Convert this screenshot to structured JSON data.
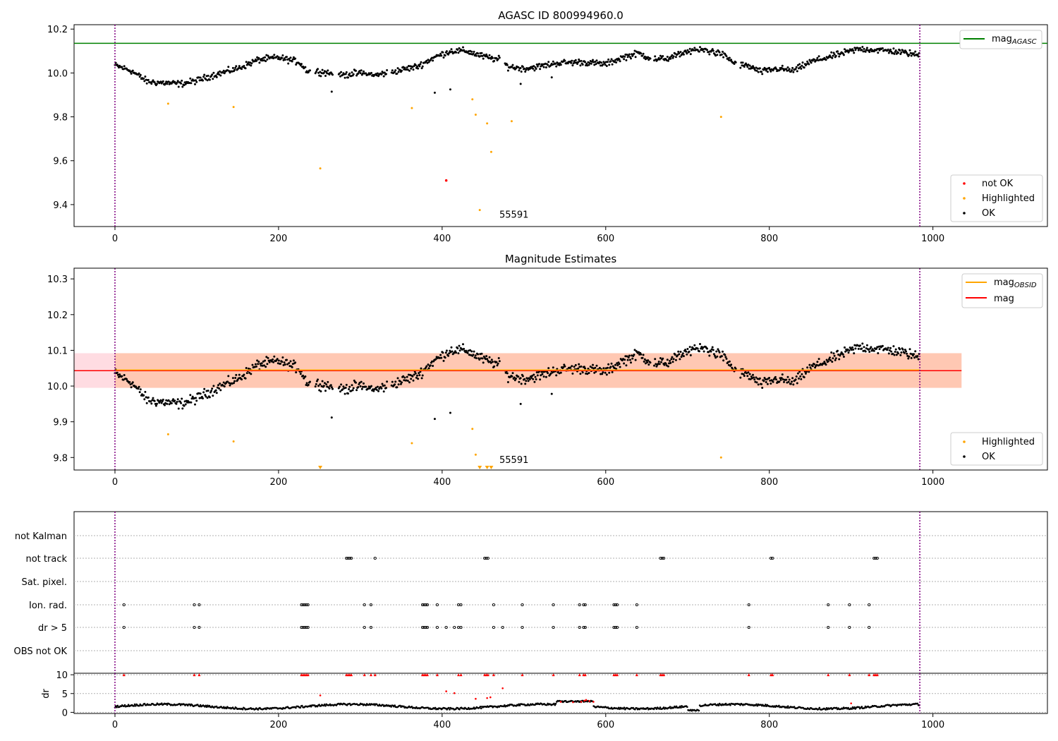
{
  "chart_data": [
    {
      "type": "scatter",
      "title": "AGASC ID 800994960.0",
      "xlim": [
        -50,
        1140
      ],
      "ylim": [
        9.3,
        10.22
      ],
      "xticks": [
        0,
        200,
        400,
        600,
        800,
        1000
      ],
      "yticks": [
        9.4,
        9.6,
        9.8,
        10.0,
        10.2
      ],
      "ytick_labels": [
        "9.4",
        "9.6",
        "9.8",
        "10.0",
        "10.2"
      ],
      "mag_agasc": 10.135,
      "vlines": [
        0,
        984
      ],
      "annotation": {
        "text": "55591",
        "x": 470,
        "y": 9.34
      },
      "legend_top": {
        "label_main": "mag",
        "label_sub": "AGASC",
        "color": "#008000"
      },
      "legend_bottom": [
        {
          "label": "not OK",
          "color": "#ff0000"
        },
        {
          "label": "Highlighted",
          "color": "#ffa500"
        },
        {
          "label": "OK",
          "color": "#000000"
        }
      ],
      "not_ok": [
        [
          405,
          9.51
        ]
      ],
      "highlighted": [
        [
          65,
          9.86
        ],
        [
          145,
          9.845
        ],
        [
          251,
          9.565
        ],
        [
          363,
          9.84
        ],
        [
          437,
          9.88
        ],
        [
          441,
          9.81
        ],
        [
          446,
          9.375
        ],
        [
          455,
          9.77
        ],
        [
          460,
          9.64
        ],
        [
          485,
          9.78
        ],
        [
          741,
          9.8
        ]
      ],
      "ok_outliers": [
        [
          265,
          9.915
        ],
        [
          391,
          9.91
        ],
        [
          410,
          9.925
        ],
        [
          496,
          9.95
        ],
        [
          534,
          9.98
        ]
      ]
    },
    {
      "type": "scatter",
      "title": "Magnitude Estimates",
      "xlim": [
        -50,
        1140
      ],
      "ylim": [
        9.765,
        10.33
      ],
      "xticks": [
        0,
        200,
        400,
        600,
        800,
        1000
      ],
      "yticks": [
        9.8,
        9.9,
        10.0,
        10.1,
        10.2,
        10.3
      ],
      "ytick_labels": [
        "9.8",
        "9.9",
        "10.0",
        "10.1",
        "10.2",
        "10.3"
      ],
      "mag": 10.043,
      "mag_obsid": 10.045,
      "band_pink": [
        9.995,
        10.092
      ],
      "band_orange_to": 1035,
      "vlines": [
        0,
        984
      ],
      "annotation": {
        "text": "55591",
        "x": 470,
        "y": 9.785
      },
      "legend_top": [
        {
          "label_main": "mag",
          "label_sub": "OBSID",
          "color": "#ffa500"
        },
        {
          "label_main": "mag",
          "label_sub": "",
          "color": "#ff0000"
        }
      ],
      "legend_bottom": [
        {
          "label": "Highlighted",
          "color": "#ffa500"
        },
        {
          "label": "OK",
          "color": "#000000"
        }
      ],
      "highlighted": [
        [
          65,
          9.865
        ],
        [
          145,
          9.845
        ],
        [
          363,
          9.84
        ],
        [
          437,
          9.88
        ],
        [
          441,
          9.808
        ],
        [
          741,
          9.8
        ]
      ],
      "clipped_markers": [
        251,
        446,
        455,
        460
      ],
      "ok_outliers": [
        [
          265,
          9.912
        ],
        [
          391,
          9.908
        ],
        [
          410,
          9.925
        ],
        [
          496,
          9.95
        ],
        [
          534,
          9.978
        ]
      ]
    },
    {
      "type": "scatter",
      "title": "",
      "xlim": [
        -50,
        1140
      ],
      "flag_labels": [
        "not Kalman",
        "not track",
        "Sat. pixel.",
        "Ion. rad.",
        "dr > 5",
        "OBS not OK"
      ],
      "vlines": [
        0,
        984
      ],
      "flags": {
        "not track": [
          283,
          285,
          287,
          289,
          318,
          452,
          454,
          456,
          667,
          669,
          671,
          802,
          804,
          928,
          930,
          932
        ],
        "Ion. rad.": [
          11,
          97,
          103,
          228,
          230,
          232,
          234,
          236,
          305,
          313,
          376,
          378,
          380,
          382,
          394,
          420,
          423,
          463,
          498,
          536,
          568,
          573,
          575,
          610,
          612,
          614,
          638,
          775,
          872,
          898,
          922
        ],
        "dr > 5": [
          11,
          97,
          103,
          228,
          230,
          232,
          234,
          236,
          305,
          313,
          376,
          378,
          380,
          382,
          394,
          405,
          415,
          420,
          423,
          463,
          474,
          498,
          536,
          568,
          573,
          575,
          610,
          612,
          614,
          638,
          775,
          872,
          898,
          922
        ]
      }
    },
    {
      "type": "scatter",
      "title": "",
      "ylabel": "dr",
      "xlim": [
        -50,
        1140
      ],
      "ylim": [
        -0.3,
        10.4
      ],
      "xticks": [
        0,
        200,
        400,
        600,
        800,
        1000
      ],
      "yticks": [
        0,
        5,
        10
      ],
      "ytick_labels": [
        "0",
        "5",
        "10"
      ],
      "vlines": [
        0,
        984
      ],
      "red_high": [
        11,
        97,
        103,
        228,
        230,
        232,
        234,
        236,
        283,
        285,
        287,
        289,
        305,
        313,
        318,
        376,
        378,
        380,
        382,
        394,
        420,
        423,
        452,
        454,
        456,
        463,
        498,
        536,
        568,
        573,
        575,
        610,
        612,
        614,
        638,
        667,
        669,
        671,
        775,
        802,
        804,
        872,
        898,
        922,
        928,
        930,
        932
      ],
      "red_points": [
        [
          251,
          4.5
        ],
        [
          405,
          5.6
        ],
        [
          415,
          5.1
        ],
        [
          441,
          3.6
        ],
        [
          455,
          3.8
        ],
        [
          459,
          4.0
        ],
        [
          474,
          6.4
        ],
        [
          545,
          2.8
        ],
        [
          560,
          2.7
        ],
        [
          570,
          2.8
        ],
        [
          574,
          3.1
        ],
        [
          576,
          3.3
        ],
        [
          580,
          3.0
        ],
        [
          585,
          2.8
        ],
        [
          900,
          2.4
        ]
      ]
    }
  ]
}
